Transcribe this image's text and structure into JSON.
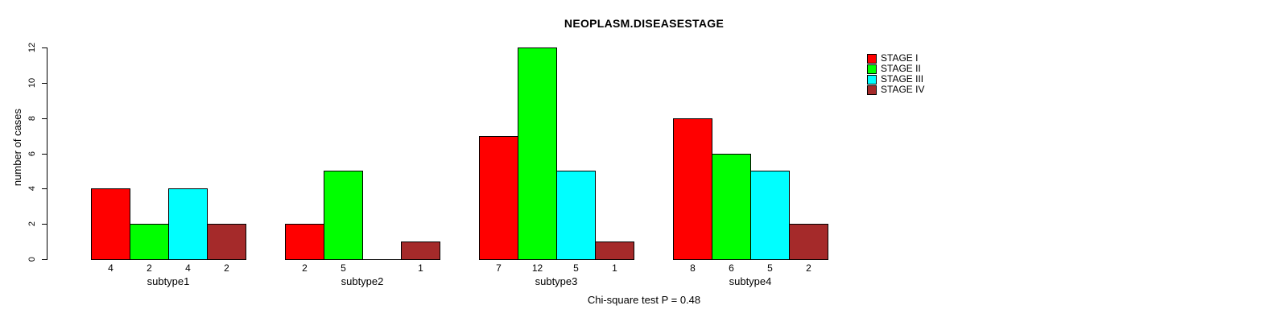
{
  "chart_data": {
    "type": "bar",
    "title": "NEOPLASM.DISEASESTAGE",
    "ylabel": "number of cases",
    "xlabel": "",
    "categories": [
      "subtype1",
      "subtype2",
      "subtype3",
      "subtype4"
    ],
    "series": [
      {
        "name": "STAGE I",
        "color": "#FF0000",
        "values": [
          4,
          2,
          7,
          8
        ]
      },
      {
        "name": "STAGE II",
        "color": "#00FF00",
        "values": [
          2,
          5,
          12,
          6
        ]
      },
      {
        "name": "STAGE III",
        "color": "#00FFFF",
        "values": [
          4,
          0,
          5,
          5
        ]
      },
      {
        "name": "STAGE IV",
        "color": "#A52A2A",
        "values": [
          2,
          1,
          1,
          2
        ]
      }
    ],
    "ylim": [
      0,
      12
    ],
    "yticks": [
      0,
      2,
      4,
      6,
      8,
      10,
      12
    ],
    "bar_value_labels_shown": true,
    "grid": false,
    "legend_position": "top-right",
    "annotation": "Chi-square test P = 0.48"
  }
}
